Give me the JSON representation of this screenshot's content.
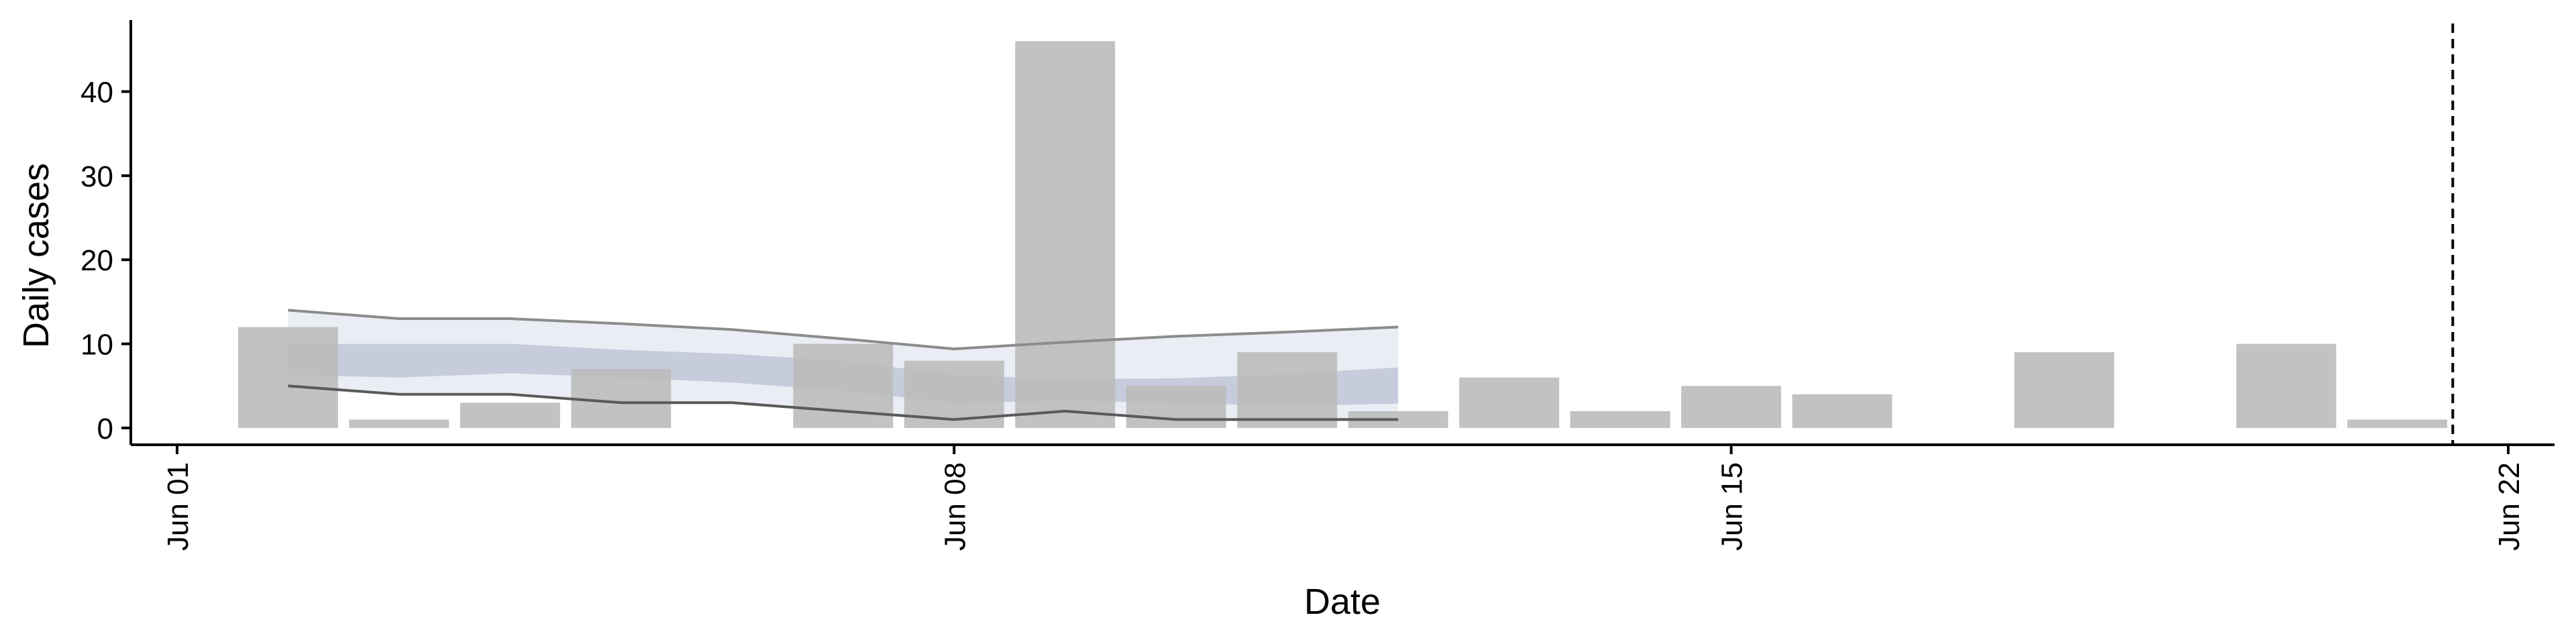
{
  "chart_data": {
    "type": "bar",
    "title": "",
    "xlabel": "Date",
    "ylabel": "Daily cases",
    "x_tick_labels": [
      {
        "date": "2023-06-01",
        "label": "Jun 01"
      },
      {
        "date": "2023-06-08",
        "label": "Jun 08"
      },
      {
        "date": "2023-06-15",
        "label": "Jun 15"
      },
      {
        "date": "2023-06-22",
        "label": "Jun 22"
      }
    ],
    "y_ticks": [
      0,
      10,
      20,
      30,
      40
    ],
    "xlim": [
      "2023-05-31T14:00",
      "2023-06-22T10:00"
    ],
    "ylim": [
      -2,
      48.5
    ],
    "grid": false,
    "colors": {
      "bars": "#bbbbbb",
      "band_outer": "#dde1ec",
      "band_inner": "#a7b0c8",
      "bound_line_upper": "#8c8c8c",
      "bound_line_lower": "#5a5a5a",
      "vline": "#000000"
    },
    "bars": {
      "dates": [
        "2023-06-02",
        "2023-06-03",
        "2023-06-04",
        "2023-06-05",
        "2023-06-07",
        "2023-06-08",
        "2023-06-09",
        "2023-06-10",
        "2023-06-11",
        "2023-06-12",
        "2023-06-13",
        "2023-06-14",
        "2023-06-15",
        "2023-06-16",
        "2023-06-18",
        "2023-06-20",
        "2023-06-21"
      ],
      "values": [
        12,
        1,
        3,
        7,
        10,
        8,
        46,
        5,
        9,
        2,
        6,
        2,
        5,
        4,
        9,
        10,
        1
      ]
    },
    "nowcast": {
      "dates": [
        "2023-06-02",
        "2023-06-03",
        "2023-06-04",
        "2023-06-05",
        "2023-06-06",
        "2023-06-07",
        "2023-06-08",
        "2023-06-09",
        "2023-06-10",
        "2023-06-11",
        "2023-06-12"
      ],
      "upper": [
        14,
        13,
        13,
        12.4,
        11.7,
        10.6,
        9.4,
        10.2,
        10.9,
        11.4,
        12
      ],
      "inner_upper": [
        10,
        10,
        10,
        9.3,
        8.8,
        8,
        6.3,
        5.8,
        5.9,
        6.4,
        7.2
      ],
      "inner_lower": [
        6.3,
        6,
        6.5,
        6,
        5.4,
        4.4,
        3,
        3.2,
        3,
        2.6,
        2.9
      ],
      "lower": [
        5,
        4,
        4,
        3,
        3,
        2,
        1,
        2,
        1,
        1,
        1
      ]
    },
    "vline": {
      "date": "2023-06-21T12:00",
      "style": "dashed"
    }
  }
}
